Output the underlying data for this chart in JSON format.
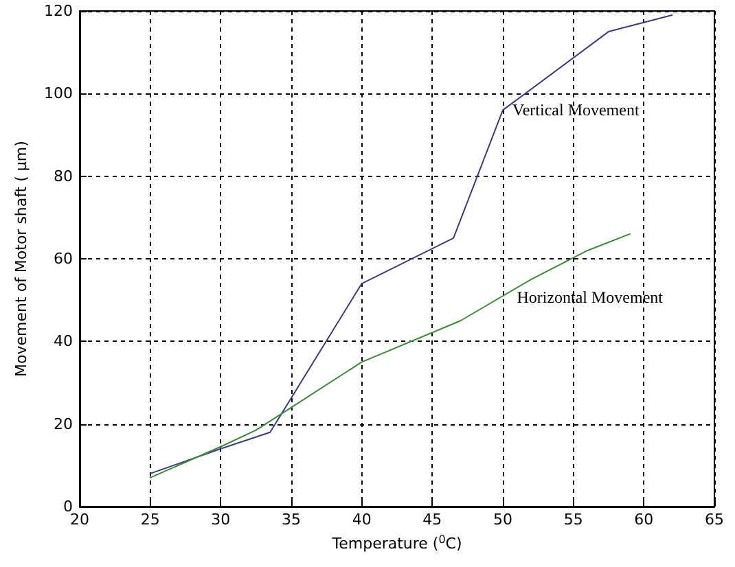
{
  "chart_data": {
    "type": "line",
    "xlabel": "Temperature ($^{0}$C)",
    "ylabel": "Movement of Motor shaft ( µm)",
    "xlim": [
      20,
      65
    ],
    "xticks": [
      20,
      25,
      30,
      35,
      40,
      45,
      50,
      55,
      60,
      65
    ],
    "ylim": [
      0,
      120
    ],
    "yticks": [
      0,
      20,
      40,
      60,
      80,
      100,
      120
    ],
    "grid": true,
    "marker": "none",
    "line_style": "solid",
    "series": [
      {
        "name": "Vertical Movement",
        "color": "#3c3c7a",
        "x": [
          25,
          30,
          33.5,
          40,
          46.5,
          50,
          57.5,
          62
        ],
        "values": [
          8,
          14,
          18,
          54,
          65,
          96,
          115,
          119
        ]
      },
      {
        "name": "Horizontal Movement",
        "color": "#3a8a3a",
        "x": [
          25,
          30,
          32.5,
          35,
          40,
          47,
          52,
          56,
          59
        ],
        "values": [
          7,
          14.5,
          18.5,
          24,
          35,
          45,
          55,
          62,
          66
        ]
      }
    ]
  }
}
